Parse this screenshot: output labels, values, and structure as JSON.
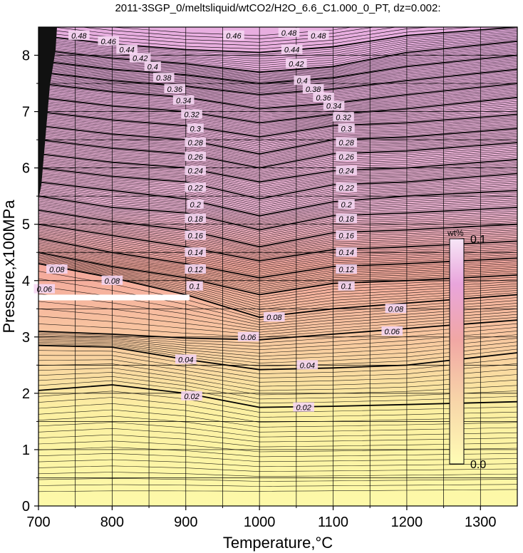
{
  "chart_data": {
    "type": "contour",
    "title": "2011-3SGP_0/meltsliquid/wtCO2/H2O_6.6_C1.000_0_PT, dz=0.002:",
    "xlabel": "Temperature,°C",
    "ylabel": "Pressure,x100MPa",
    "xlim": [
      700,
      1350
    ],
    "ylim": [
      0,
      8.5
    ],
    "x_ticks": [
      700,
      800,
      900,
      1000,
      1100,
      1200,
      1300
    ],
    "y_ticks": [
      0,
      1,
      2,
      3,
      4,
      5,
      6,
      7,
      8
    ],
    "grid": true,
    "colorbar": {
      "unit": "wt%",
      "min_label": "0.0",
      "max_label": "0.1",
      "min": 0.0,
      "max": 0.1,
      "colors": [
        "#fffdb0",
        "#f6b6a0",
        "#e9a4d2",
        "#ffffff"
      ]
    },
    "field_colors": [
      "#fdf9a6",
      "#f8b79b",
      "#ebb6d6"
    ],
    "masked_band": {
      "x": [
        700,
        905
      ],
      "y": 3.7,
      "color": "#ffffff"
    },
    "contour_labels": [
      {
        "text": "0.48",
        "t": 755,
        "p": 8.35
      },
      {
        "text": "0.46",
        "t": 795,
        "p": 8.25
      },
      {
        "text": "0.44",
        "t": 820,
        "p": 8.1
      },
      {
        "text": "0.42",
        "t": 838,
        "p": 7.95
      },
      {
        "text": "0.4",
        "t": 855,
        "p": 7.8
      },
      {
        "text": "0.38",
        "t": 870,
        "p": 7.6
      },
      {
        "text": "0.36",
        "t": 885,
        "p": 7.4
      },
      {
        "text": "0.34",
        "t": 897,
        "p": 7.2
      },
      {
        "text": "0.32",
        "t": 908,
        "p": 6.95
      },
      {
        "text": "0.3",
        "t": 913,
        "p": 6.7
      },
      {
        "text": "0.28",
        "t": 913,
        "p": 6.45
      },
      {
        "text": "0.26",
        "t": 913,
        "p": 6.2
      },
      {
        "text": "0.24",
        "t": 913,
        "p": 5.95
      },
      {
        "text": "0.22",
        "t": 913,
        "p": 5.65
      },
      {
        "text": "0.2",
        "t": 913,
        "p": 5.35
      },
      {
        "text": "0.18",
        "t": 913,
        "p": 5.1
      },
      {
        "text": "0.16",
        "t": 913,
        "p": 4.8
      },
      {
        "text": "0.14",
        "t": 913,
        "p": 4.5
      },
      {
        "text": "0.12",
        "t": 913,
        "p": 4.2
      },
      {
        "text": "0.1",
        "t": 912,
        "p": 3.9
      },
      {
        "text": "0.08",
        "t": 725,
        "p": 4.2
      },
      {
        "text": "0.08",
        "t": 800,
        "p": 4.0
      },
      {
        "text": "0.06",
        "t": 708,
        "p": 3.85
      },
      {
        "text": "0.04",
        "t": 900,
        "p": 2.6
      },
      {
        "text": "0.02",
        "t": 908,
        "p": 1.95
      },
      {
        "text": "0.46",
        "t": 965,
        "p": 8.35
      },
      {
        "text": "0.48",
        "t": 1040,
        "p": 8.4
      },
      {
        "text": "0.48",
        "t": 1080,
        "p": 8.35
      },
      {
        "text": "0.44",
        "t": 1044,
        "p": 8.1
      },
      {
        "text": "0.42",
        "t": 1050,
        "p": 7.85
      },
      {
        "text": "0.4",
        "t": 1058,
        "p": 7.55
      },
      {
        "text": "0.38",
        "t": 1073,
        "p": 7.4
      },
      {
        "text": "0.36",
        "t": 1087,
        "p": 7.25
      },
      {
        "text": "0.34",
        "t": 1101,
        "p": 7.1
      },
      {
        "text": "0.32",
        "t": 1114,
        "p": 6.9
      },
      {
        "text": "0.3",
        "t": 1118,
        "p": 6.7
      },
      {
        "text": "0.28",
        "t": 1118,
        "p": 6.45
      },
      {
        "text": "0.26",
        "t": 1118,
        "p": 6.2
      },
      {
        "text": "0.24",
        "t": 1118,
        "p": 5.95
      },
      {
        "text": "0.22",
        "t": 1118,
        "p": 5.65
      },
      {
        "text": "0.2",
        "t": 1118,
        "p": 5.35
      },
      {
        "text": "0.18",
        "t": 1118,
        "p": 5.1
      },
      {
        "text": "0.16",
        "t": 1118,
        "p": 4.8
      },
      {
        "text": "0.14",
        "t": 1118,
        "p": 4.5
      },
      {
        "text": "0.12",
        "t": 1118,
        "p": 4.2
      },
      {
        "text": "0.1",
        "t": 1118,
        "p": 3.9
      },
      {
        "text": "0.08",
        "t": 1020,
        "p": 3.35
      },
      {
        "text": "0.08",
        "t": 1185,
        "p": 3.5
      },
      {
        "text": "0.06",
        "t": 985,
        "p": 3.0
      },
      {
        "text": "0.06",
        "t": 1180,
        "p": 3.1
      },
      {
        "text": "0.04",
        "t": 1065,
        "p": 2.5
      },
      {
        "text": "0.02",
        "t": 1060,
        "p": 1.75
      }
    ],
    "contour_lines": [
      {
        "level": 0.02,
        "points": [
          [
            700,
            2.05
          ],
          [
            800,
            2.15
          ],
          [
            900,
            2.0
          ],
          [
            1000,
            1.75
          ],
          [
            1100,
            1.77
          ],
          [
            1200,
            1.8
          ],
          [
            1350,
            1.85
          ]
        ]
      },
      {
        "level": 0.04,
        "points": [
          [
            700,
            2.85
          ],
          [
            800,
            2.82
          ],
          [
            900,
            2.6
          ],
          [
            1000,
            2.42
          ],
          [
            1100,
            2.45
          ],
          [
            1200,
            2.5
          ],
          [
            1350,
            2.72
          ]
        ]
      },
      {
        "level": 0.06,
        "points": [
          [
            700,
            3.1
          ],
          [
            800,
            3.05
          ],
          [
            900,
            2.98
          ],
          [
            1000,
            2.95
          ],
          [
            1100,
            3.05
          ],
          [
            1200,
            3.15
          ],
          [
            1350,
            3.3
          ]
        ]
      },
      {
        "level": 0.08,
        "points": [
          [
            700,
            4.3
          ],
          [
            800,
            4.05
          ],
          [
            900,
            3.75
          ],
          [
            1000,
            3.35
          ],
          [
            1100,
            3.5
          ],
          [
            1200,
            3.6
          ],
          [
            1350,
            3.75
          ]
        ]
      },
      {
        "level": 0.1,
        "points": [
          [
            700,
            4.5
          ],
          [
            800,
            4.25
          ],
          [
            900,
            4.05
          ],
          [
            1000,
            3.75
          ],
          [
            1100,
            3.95
          ],
          [
            1200,
            4.0
          ],
          [
            1350,
            4.1
          ]
        ]
      },
      {
        "level": 0.12,
        "points": [
          [
            700,
            4.75
          ],
          [
            800,
            4.5
          ],
          [
            900,
            4.3
          ],
          [
            1000,
            4.05
          ],
          [
            1100,
            4.25
          ],
          [
            1200,
            4.3
          ],
          [
            1350,
            4.4
          ]
        ]
      },
      {
        "level": 0.14,
        "points": [
          [
            700,
            5.0
          ],
          [
            800,
            4.8
          ],
          [
            900,
            4.6
          ],
          [
            1000,
            4.35
          ],
          [
            1100,
            4.55
          ],
          [
            1200,
            4.6
          ],
          [
            1350,
            4.7
          ]
        ]
      },
      {
        "level": 0.16,
        "points": [
          [
            700,
            5.25
          ],
          [
            800,
            5.05
          ],
          [
            900,
            4.9
          ],
          [
            1000,
            4.6
          ],
          [
            1100,
            4.85
          ],
          [
            1200,
            4.9
          ],
          [
            1350,
            5.0
          ]
        ]
      },
      {
        "level": 0.18,
        "points": [
          [
            700,
            5.5
          ],
          [
            800,
            5.3
          ],
          [
            900,
            5.2
          ],
          [
            1000,
            4.9
          ],
          [
            1100,
            5.15
          ],
          [
            1200,
            5.2
          ],
          [
            1350,
            5.3
          ]
        ]
      },
      {
        "level": 0.2,
        "points": [
          [
            700,
            5.75
          ],
          [
            800,
            5.6
          ],
          [
            900,
            5.45
          ],
          [
            1000,
            5.15
          ],
          [
            1100,
            5.4
          ],
          [
            1200,
            5.5
          ],
          [
            1350,
            5.6
          ]
        ]
      },
      {
        "level": 0.22,
        "points": [
          [
            700,
            6.0
          ],
          [
            800,
            5.85
          ],
          [
            900,
            5.75
          ],
          [
            1000,
            5.45
          ],
          [
            1100,
            5.7
          ],
          [
            1200,
            5.75
          ],
          [
            1350,
            5.9
          ]
        ]
      },
      {
        "level": 0.24,
        "points": [
          [
            700,
            6.25
          ],
          [
            800,
            6.1
          ],
          [
            900,
            6.0
          ],
          [
            1000,
            5.75
          ],
          [
            1100,
            5.95
          ],
          [
            1200,
            6.0
          ],
          [
            1350,
            6.15
          ]
        ]
      },
      {
        "level": 0.26,
        "points": [
          [
            700,
            6.5
          ],
          [
            800,
            6.35
          ],
          [
            900,
            6.25
          ],
          [
            1000,
            6.0
          ],
          [
            1100,
            6.25
          ],
          [
            1200,
            6.3
          ],
          [
            1350,
            6.45
          ]
        ]
      },
      {
        "level": 0.28,
        "points": [
          [
            700,
            6.75
          ],
          [
            800,
            6.6
          ],
          [
            900,
            6.5
          ],
          [
            1000,
            6.25
          ],
          [
            1100,
            6.5
          ],
          [
            1200,
            6.55
          ],
          [
            1350,
            6.7
          ]
        ]
      },
      {
        "level": 0.3,
        "points": [
          [
            700,
            7.0
          ],
          [
            800,
            6.85
          ],
          [
            900,
            6.75
          ],
          [
            1000,
            6.55
          ],
          [
            1100,
            6.75
          ],
          [
            1200,
            6.8
          ],
          [
            1350,
            6.95
          ]
        ]
      },
      {
        "level": 0.32,
        "points": [
          [
            700,
            7.25
          ],
          [
            800,
            7.1
          ],
          [
            900,
            7.0
          ],
          [
            1000,
            6.8
          ],
          [
            1100,
            6.95
          ],
          [
            1200,
            7.05
          ],
          [
            1350,
            7.25
          ]
        ]
      },
      {
        "level": 0.34,
        "points": [
          [
            700,
            7.5
          ],
          [
            800,
            7.35
          ],
          [
            900,
            7.25
          ],
          [
            1000,
            7.05
          ],
          [
            1100,
            7.15
          ],
          [
            1200,
            7.3
          ],
          [
            1350,
            7.5
          ]
        ]
      },
      {
        "level": 0.36,
        "points": [
          [
            700,
            7.7
          ],
          [
            800,
            7.55
          ],
          [
            900,
            7.45
          ],
          [
            1000,
            7.3
          ],
          [
            1100,
            7.4
          ],
          [
            1200,
            7.55
          ],
          [
            1350,
            7.75
          ]
        ]
      },
      {
        "level": 0.38,
        "points": [
          [
            700,
            7.9
          ],
          [
            800,
            7.75
          ],
          [
            900,
            7.65
          ],
          [
            1000,
            7.5
          ],
          [
            1100,
            7.6
          ],
          [
            1200,
            7.8
          ],
          [
            1350,
            8.0
          ]
        ]
      },
      {
        "level": 0.4,
        "points": [
          [
            700,
            8.1
          ],
          [
            800,
            7.95
          ],
          [
            900,
            7.85
          ],
          [
            1000,
            7.7
          ],
          [
            1100,
            7.8
          ],
          [
            1200,
            8.05
          ],
          [
            1350,
            8.25
          ]
        ]
      },
      {
        "level": 0.44,
        "points": [
          [
            700,
            8.35
          ],
          [
            800,
            8.2
          ],
          [
            900,
            8.1
          ],
          [
            1000,
            8.05
          ],
          [
            1100,
            8.15
          ],
          [
            1200,
            8.35
          ],
          [
            1350,
            8.5
          ]
        ]
      }
    ]
  }
}
